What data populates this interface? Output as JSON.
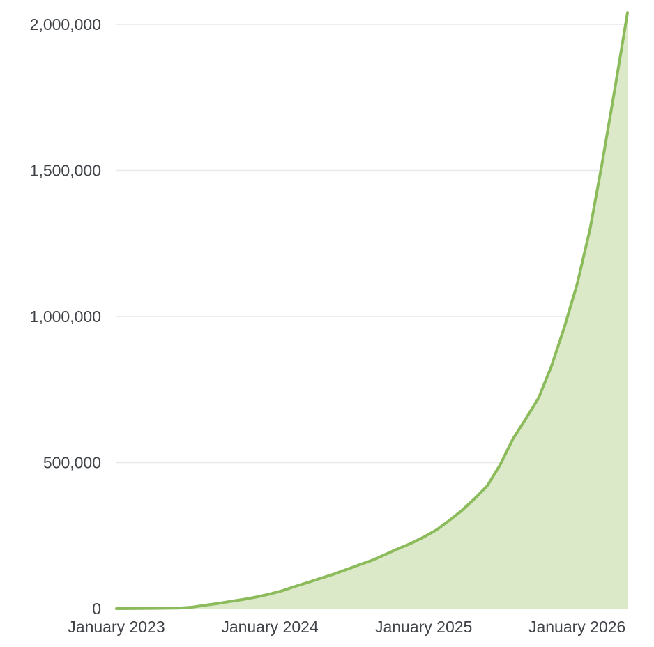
{
  "chart_data": {
    "type": "area",
    "title": "",
    "xlabel": "",
    "ylabel": "",
    "x_domain": [
      "2023-01-01",
      "2026-05-01"
    ],
    "ylim": [
      0,
      2000000
    ],
    "grid": true,
    "legend": "none",
    "colors": {
      "line": "#8bbb5b",
      "fill": "#dce9c9",
      "grid": "#e6e8ea",
      "text": "#3f4348"
    },
    "y_ticks": [
      {
        "value": 0,
        "label": "0"
      },
      {
        "value": 500000,
        "label": "500,000"
      },
      {
        "value": 1000000,
        "label": "1,000,000"
      },
      {
        "value": 1500000,
        "label": "1,500,000"
      },
      {
        "value": 2000000,
        "label": "2,000,000"
      }
    ],
    "x_ticks": [
      {
        "value": "2023-01-01",
        "label": "January 2023"
      },
      {
        "value": "2024-01-01",
        "label": "January 2024"
      },
      {
        "value": "2025-01-01",
        "label": "January 2025"
      },
      {
        "value": "2026-01-01",
        "label": "January 2026"
      }
    ],
    "series": [
      {
        "x": [
          "2023-01-01",
          "2023-02-01",
          "2023-03-01",
          "2023-04-01",
          "2023-05-01",
          "2023-06-01",
          "2023-07-01",
          "2023-08-01",
          "2023-09-01",
          "2023-10-01",
          "2023-11-01",
          "2023-12-01",
          "2024-01-01",
          "2024-02-01",
          "2024-03-01",
          "2024-04-01",
          "2024-05-01",
          "2024-06-01",
          "2024-07-01",
          "2024-08-01",
          "2024-09-01",
          "2024-10-01",
          "2024-11-01",
          "2024-12-01",
          "2025-01-01",
          "2025-02-01",
          "2025-03-01",
          "2025-04-01",
          "2025-05-01",
          "2025-06-01",
          "2025-07-01",
          "2025-08-01",
          "2025-09-01",
          "2025-10-01",
          "2025-11-01",
          "2025-12-01",
          "2026-01-01",
          "2026-02-01",
          "2026-03-01",
          "2026-04-01",
          "2026-05-01"
        ],
        "y": [
          0,
          200,
          500,
          1000,
          1500,
          2000,
          5000,
          12000,
          18000,
          25000,
          32000,
          40000,
          50000,
          62000,
          76000,
          90000,
          104000,
          118000,
          134000,
          150000,
          166000,
          185000,
          205000,
          223000,
          245000,
          270000,
          300000,
          335000,
          375000,
          420000,
          490000,
          580000,
          650000,
          720000,
          830000,
          960000,
          1110000,
          1300000,
          1520000,
          1780000,
          2040000
        ]
      }
    ]
  }
}
